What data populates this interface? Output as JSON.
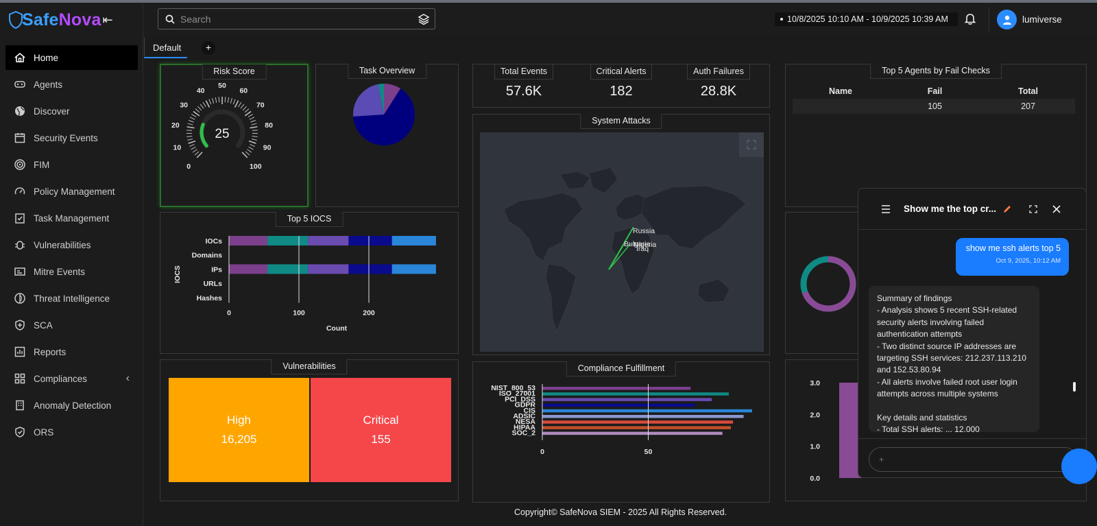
{
  "app": {
    "brand_part1": "Safe",
    "brand_part2": "Nova",
    "colors": {
      "accent": "#2b8cff",
      "brand_blue": "#3aa0ff",
      "brand_purple": "#b44bff",
      "high": "#ffa500",
      "critical": "#f5474a"
    }
  },
  "sidebar": {
    "items": [
      {
        "label": "Home",
        "icon": "home-icon"
      },
      {
        "label": "Agents",
        "icon": "agents-icon"
      },
      {
        "label": "Discover",
        "icon": "globe-icon"
      },
      {
        "label": "Security Events",
        "icon": "calendar-icon"
      },
      {
        "label": "FIM",
        "icon": "target-icon"
      },
      {
        "label": "Policy Management",
        "icon": "gauge-icon"
      },
      {
        "label": "Task Management",
        "icon": "task-icon"
      },
      {
        "label": "Vulnerabilities",
        "icon": "bug-icon"
      },
      {
        "label": "Mitre Events",
        "icon": "id-card-icon"
      },
      {
        "label": "Threat Intelligence",
        "icon": "threat-icon"
      },
      {
        "label": "SCA",
        "icon": "shield-plus-icon"
      },
      {
        "label": "Reports",
        "icon": "reports-icon"
      },
      {
        "label": "Compliances",
        "icon": "grid-icon"
      },
      {
        "label": "Anomaly Detection",
        "icon": "building-icon"
      },
      {
        "label": "ORS",
        "icon": "shield-check-icon"
      }
    ]
  },
  "header": {
    "search_placeholder": "Search",
    "date_range": "10/8/2025 10:10 AM - 10/9/2025 10:39 AM",
    "username": "lumiverse"
  },
  "tabs": {
    "active": "Default",
    "add": "+"
  },
  "risk_score": {
    "title": "Risk Score",
    "value": "25",
    "ticks": [
      "0",
      "10",
      "20",
      "30",
      "40",
      "50",
      "60",
      "70",
      "80",
      "90",
      "100"
    ]
  },
  "task_overview": {
    "title": "Task Overview"
  },
  "stats": [
    {
      "label": "Total Events",
      "value": "57.6K"
    },
    {
      "label": "Critical Alerts",
      "value": "182"
    },
    {
      "label": "Auth Failures",
      "value": "28.8K"
    }
  ],
  "top_agents": {
    "title": "Top 5 Agents by Fail Checks",
    "headers": [
      "Name",
      "Fail",
      "Total"
    ],
    "rows": [
      [
        "",
        "105",
        "207"
      ]
    ]
  },
  "system_attacks": {
    "title": "System Attacks",
    "labels": [
      "Russia",
      "Bulgaria",
      "Nigeria",
      "Iraq"
    ]
  },
  "top_iocs": {
    "title": "Top 5 IOCS",
    "ylabel": "IOCS",
    "xlabel": "Count",
    "categories": [
      "IOCs",
      "Domains",
      "IPs",
      "URLs",
      "Hashes"
    ],
    "ticks": [
      "0",
      "100",
      "200"
    ]
  },
  "vulnerabilities": {
    "title": "Vulnerabilities",
    "items": [
      {
        "label": "High",
        "value": "16,205"
      },
      {
        "label": "Critical",
        "value": "155"
      }
    ]
  },
  "compliance": {
    "title": "Compliance Fulfillment",
    "ticks": [
      "0",
      "50"
    ]
  },
  "right_chart": {
    "ticks": [
      "3.0",
      "2.0",
      "1.0",
      "0.0"
    ]
  },
  "chat": {
    "title": "Show me the top cr...",
    "user_message": "show me ssh alerts top 5",
    "user_time": "Oct 9, 2025, 10:12 AM",
    "reply_lines": [
      "Summary of findings",
      "- Analysis shows 5 recent SSH-related security alerts involving failed authentication attempts",
      "- Two distinct source IP addresses are targeting SSH services: 212.237.113.210 and 152.53.80.94",
      "- All alerts involve failed root user login attempts across multiple systems",
      "",
      "Key details and statistics",
      "- Total SSH alerts: ... 12,000"
    ],
    "input_placeholder": "+"
  },
  "footer": {
    "text": "Copyright© SafeNova SIEM - 2025 All Rights Reserved."
  },
  "chart_data": [
    {
      "type": "bar",
      "title": "Top 5 IOCS",
      "orientation": "horizontal-stacked",
      "xlabel": "Count",
      "ylabel": "IOCS",
      "categories": [
        "IOCs",
        "Domains",
        "IPs",
        "URLs",
        "Hashes"
      ],
      "xlim": [
        0,
        300
      ],
      "series": [
        {
          "name": "s1",
          "color": "#7b3f8c",
          "values": [
            55,
            0,
            55,
            0,
            0
          ]
        },
        {
          "name": "s2",
          "color": "#0f8a85",
          "values": [
            58,
            0,
            58,
            0,
            0
          ]
        },
        {
          "name": "s3",
          "color": "#6a4bb0",
          "values": [
            58,
            0,
            58,
            0,
            0
          ]
        },
        {
          "name": "s4",
          "color": "#0a0a8c",
          "values": [
            62,
            0,
            62,
            0,
            0
          ]
        },
        {
          "name": "s5",
          "color": "#2a86d8",
          "values": [
            63,
            0,
            63,
            0,
            0
          ]
        }
      ]
    },
    {
      "type": "pie",
      "title": "Task Overview",
      "slices": [
        {
          "color": "#00007f",
          "value": 65
        },
        {
          "color": "#5b4bb5",
          "value": 23
        },
        {
          "color": "#0f8a85",
          "value": 3
        },
        {
          "color": "#7b3f8c",
          "value": 9
        }
      ]
    },
    {
      "type": "bar",
      "title": "Compliance Fulfillment",
      "orientation": "horizontal",
      "categories": [
        "NIST_800_53",
        "ISO_27001",
        "PCI_DSS",
        "GDPR",
        "CIS",
        "ADSIC",
        "NESA",
        "HIPAA",
        "SOC_2"
      ],
      "values": [
        70,
        88,
        80,
        72,
        99,
        95,
        90,
        89,
        85
      ],
      "colors": [
        "#7b3f8c",
        "#0f8a85",
        "#6a4bb0",
        "#0a0a8c",
        "#2a86d8",
        "#8a96d0",
        "#d84a3c",
        "#c0502a",
        "#b08abf"
      ],
      "xlim": [
        0,
        100
      ]
    },
    {
      "type": "bar",
      "orientation": "vertical",
      "categories": [
        ""
      ],
      "values": [
        3.0
      ],
      "ylim": [
        0,
        3.0
      ]
    }
  ]
}
